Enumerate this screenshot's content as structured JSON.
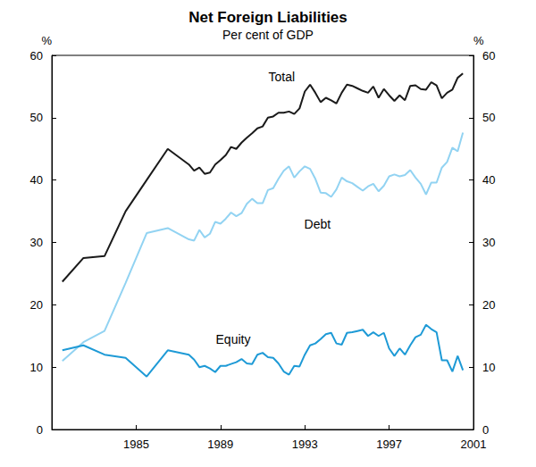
{
  "chart_data": {
    "type": "line",
    "title": "Net Foreign Liabilities",
    "subtitle": "Per cent of GDP",
    "ylabel": "%",
    "x": [
      1981.5,
      1982.5,
      1983.5,
      1984.5,
      1985.5,
      1986.5,
      1987.5,
      1987.75,
      1988,
      1988.25,
      1988.5,
      1988.75,
      1989,
      1989.25,
      1989.5,
      1989.75,
      1990,
      1990.25,
      1990.5,
      1990.75,
      1991,
      1991.25,
      1991.5,
      1991.75,
      1992,
      1992.25,
      1992.5,
      1992.75,
      1993,
      1993.25,
      1993.5,
      1993.75,
      1994,
      1994.25,
      1994.5,
      1994.75,
      1995,
      1995.25,
      1995.5,
      1995.75,
      1996,
      1996.25,
      1996.5,
      1996.75,
      1997,
      1997.25,
      1997.5,
      1997.75,
      1998,
      1998.25,
      1998.5,
      1998.75,
      1999,
      1999.25,
      1999.5,
      1999.75,
      2000,
      2000.25,
      2000.5
    ],
    "series": [
      {
        "name": "Total",
        "color": "#1a1a1a",
        "values": [
          23.7,
          27.5,
          27.8,
          35,
          40,
          45,
          42.5,
          41.5,
          42,
          41,
          41.2,
          42.5,
          43.2,
          44,
          45.3,
          45,
          46,
          46.8,
          47.5,
          48.3,
          48.6,
          50,
          50.2,
          50.8,
          50.8,
          51,
          50.6,
          51.5,
          54.2,
          55.3,
          54,
          52.5,
          53.2,
          52.8,
          52.3,
          54,
          55.3,
          55.1,
          54.7,
          54.3,
          54,
          55,
          53.2,
          54.6,
          53.6,
          52.7,
          53.6,
          52.8,
          55.1,
          55.2,
          54.6,
          54.5,
          55.7,
          55.2,
          53.1,
          54,
          54.5,
          56.4,
          57.1
        ]
      },
      {
        "name": "Debt",
        "color": "#92d3f2",
        "values": [
          11,
          14,
          15.8,
          23.5,
          31.5,
          32.3,
          30.5,
          30.3,
          32,
          30.8,
          31.4,
          33.3,
          33,
          33.8,
          34.8,
          34.2,
          34.7,
          36.2,
          37,
          36.3,
          36.3,
          38.4,
          38.7,
          40.2,
          41.5,
          42.2,
          40.4,
          41.4,
          42.2,
          41.8,
          40.2,
          38,
          37.9,
          37.3,
          38.5,
          40.4,
          39.8,
          39.5,
          38.9,
          38.3,
          39,
          39.4,
          38.2,
          39.1,
          40.6,
          40.9,
          40.6,
          40.8,
          41.6,
          40.4,
          39.4,
          37.7,
          39.6,
          39.6,
          42,
          42.9,
          45.2,
          44.6,
          47.6
        ]
      },
      {
        "name": "Equity",
        "color": "#1e9ad6",
        "values": [
          12.7,
          13.5,
          12,
          11.5,
          8.5,
          12.7,
          12,
          11.2,
          10,
          10.2,
          9.8,
          9.2,
          10.2,
          10.2,
          10.5,
          10.8,
          11.3,
          10.6,
          10.5,
          12,
          12.3,
          11.6,
          11.5,
          10.6,
          9.3,
          8.8,
          10.2,
          10.1,
          12,
          13.5,
          13.8,
          14.5,
          15.3,
          15.5,
          13.8,
          13.6,
          15.5,
          15.6,
          15.8,
          16,
          15,
          15.6,
          15,
          15.5,
          13,
          11.8,
          13,
          12,
          13.5,
          14.8,
          15.2,
          16.8,
          16.1,
          15.6,
          11.1,
          11.1,
          9.3,
          11.8,
          9.5
        ]
      }
    ],
    "xlim": [
      1981,
      2001
    ],
    "xticks": [
      1985,
      1989,
      1993,
      1997,
      2001
    ],
    "ylim": [
      0,
      60
    ],
    "yticks": [
      0,
      10,
      20,
      30,
      40,
      50,
      60
    ],
    "grid": false
  }
}
